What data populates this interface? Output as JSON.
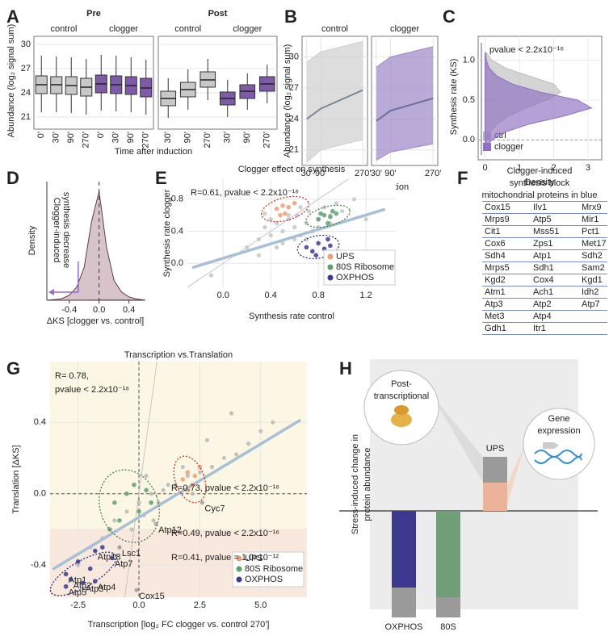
{
  "chart_data": [
    {
      "type": "box",
      "label": "A",
      "ylabel": "Abundance (log₂ signal sum)",
      "xlabel": "Time after induction",
      "ylim": [
        19.5,
        31
      ],
      "yticks": [
        21,
        24,
        27,
        30
      ],
      "grid": true,
      "facets": [
        {
          "title": "Pre",
          "title_color": "#5aa84c",
          "categories": [
            "0'",
            "30'",
            "90'",
            "270'"
          ],
          "series": [
            {
              "name": "control",
              "color": "#c8c8c8",
              "boxes": [
                {
                  "q1": 23.9,
                  "median": 25.0,
                  "q3": 26.1,
                  "low": 21.6,
                  "high": 28.6
                },
                {
                  "q1": 23.9,
                  "median": 25.0,
                  "q3": 26.0,
                  "low": 21.6,
                  "high": 28.5
                },
                {
                  "q1": 23.8,
                  "median": 24.9,
                  "q3": 26.0,
                  "low": 21.5,
                  "high": 28.4
                },
                {
                  "q1": 23.6,
                  "median": 24.7,
                  "q3": 25.8,
                  "low": 21.3,
                  "high": 28.2
                }
              ]
            },
            {
              "name": "clogger",
              "color": "#7d5ba6",
              "boxes": [
                {
                  "q1": 24.0,
                  "median": 25.1,
                  "q3": 26.2,
                  "low": 21.8,
                  "high": 28.7
                },
                {
                  "q1": 23.9,
                  "median": 25.0,
                  "q3": 26.1,
                  "low": 21.7,
                  "high": 28.6
                },
                {
                  "q1": 23.8,
                  "median": 24.9,
                  "q3": 26.0,
                  "low": 21.6,
                  "high": 28.4
                },
                {
                  "q1": 23.5,
                  "median": 24.6,
                  "q3": 25.8,
                  "low": 21.3,
                  "high": 28.1
                }
              ]
            }
          ]
        },
        {
          "title": "Post",
          "title_color": "#c0509a",
          "categories": [
            "30'",
            "90'",
            "270'"
          ],
          "series": [
            {
              "name": "control",
              "color": "#c8c8c8",
              "boxes": [
                {
                  "q1": 22.4,
                  "median": 23.3,
                  "q3": 24.2,
                  "low": 20.9,
                  "high": 25.8
                },
                {
                  "q1": 23.5,
                  "median": 24.4,
                  "q3": 25.3,
                  "low": 21.9,
                  "high": 26.9
                },
                {
                  "q1": 24.7,
                  "median": 25.6,
                  "q3": 26.6,
                  "low": 23.1,
                  "high": 28.2
                }
              ]
            },
            {
              "name": "clogger",
              "color": "#7d5ba6",
              "boxes": [
                {
                  "q1": 22.5,
                  "median": 23.3,
                  "q3": 24.1,
                  "low": 21.0,
                  "high": 25.6
                },
                {
                  "q1": 23.3,
                  "median": 24.2,
                  "q3": 25.0,
                  "low": 21.9,
                  "high": 26.4
                },
                {
                  "q1": 24.2,
                  "median": 25.1,
                  "q3": 26.0,
                  "low": 22.7,
                  "high": 27.5
                }
              ]
            }
          ]
        }
      ]
    },
    {
      "type": "line",
      "label": "B",
      "ylabel": "Abundance (log₂ signal sum)",
      "xlabel": "Time after induction",
      "x": [
        30,
        90,
        270
      ],
      "xlim": [
        10,
        290
      ],
      "xticks": [
        {
          "value": 30,
          "label": "30'"
        },
        {
          "value": 90,
          "label": "90'"
        },
        {
          "value": 270,
          "label": "270'"
        }
      ],
      "ylim": [
        19.5,
        32
      ],
      "yticks": [
        21,
        24,
        27,
        30
      ],
      "grid": true,
      "facets": [
        {
          "title": "control",
          "color": "#7a8699",
          "band_color": "#cfcfcf",
          "median": [
            24.0,
            25.0,
            26.8
          ],
          "low": [
            19.8,
            21.0,
            22.0
          ],
          "high": [
            29.5,
            30.5,
            31.5
          ]
        },
        {
          "title": "clogger",
          "color": "#6a6fa0",
          "band_color": "#9d86c6",
          "median": [
            23.8,
            24.8,
            26.0
          ],
          "low": [
            20.0,
            20.8,
            21.6
          ],
          "high": [
            29.0,
            30.0,
            31.0
          ]
        }
      ]
    },
    {
      "type": "density",
      "orientation": "horizontal",
      "label": "C",
      "ylabel": "Synthesis rate (KS)",
      "xlabel": "Density",
      "annotations": [
        "pvalue  < 2.2x10⁻¹⁶"
      ],
      "ylim": [
        -0.25,
        1.3
      ],
      "yticks": [
        {
          "value": 0,
          "label": "0.0"
        },
        0.5,
        {
          "value": 1,
          "label": "1.0"
        }
      ],
      "xlim": [
        -0.2,
        3.4
      ],
      "xticks": [
        0,
        1,
        2,
        3
      ],
      "y": [
        -0.1,
        0,
        0.1,
        0.2,
        0.3,
        0.4,
        0.5,
        0.6,
        0.7,
        0.8,
        0.9,
        1.0,
        1.1
      ],
      "series": [
        {
          "name": "ctrl",
          "color": "#bdbdbd",
          "values": [
            0,
            0.05,
            0.15,
            0.35,
            0.7,
            1.2,
            1.8,
            2.2,
            2.0,
            1.3,
            0.6,
            0.2,
            0.03
          ]
        },
        {
          "name": "clogger",
          "color": "#8e6fc0",
          "values": [
            0,
            0.2,
            0.6,
            1.3,
            2.3,
            3.1,
            2.7,
            1.6,
            0.8,
            0.35,
            0.12,
            0.04,
            0
          ]
        }
      ],
      "legend": "bottom-left"
    },
    {
      "type": "density",
      "orientation": "vertical",
      "label": "D",
      "ylabel": "Density",
      "xlabel": "ΔKS [clogger vs. control]",
      "annotations": [
        "Clogger-induced",
        "synthesis decrease"
      ],
      "x": [
        -0.7,
        -0.6,
        -0.5,
        -0.4,
        -0.3,
        -0.2,
        -0.1,
        0,
        0.1,
        0.2,
        0.3,
        0.4,
        0.5,
        0.6
      ],
      "values": [
        0,
        0.02,
        0.05,
        0.15,
        0.4,
        1.0,
        2.4,
        3.3,
        1.6,
        0.6,
        0.25,
        0.1,
        0.04,
        0.01
      ],
      "xlim": [
        -0.7,
        0.62
      ],
      "xticks": [
        -0.4,
        {
          "value": 0,
          "label": "0.0"
        },
        0.4
      ],
      "ylim": [
        0,
        3.6
      ],
      "color": "#d9c3ca"
    },
    {
      "type": "scatter",
      "label": "E",
      "title": "Clogger effect on synthesis",
      "annotations": [
        "R=0.61, pvalue < 2.2x10⁻¹⁶"
      ],
      "xlabel": "Synthesis rate control",
      "ylabel": "Synthesis rate clogger",
      "xlim": [
        -0.3,
        1.45
      ],
      "xticks": [
        {
          "value": 0,
          "label": "0.0"
        },
        0.4,
        0.8,
        1.2
      ],
      "ylim": [
        -0.3,
        1.05
      ],
      "yticks": [
        {
          "value": 0,
          "label": "0.0"
        },
        0.4,
        0.8
      ],
      "grid": true,
      "background": {
        "color": "#c4c4c4",
        "x": [
          0.2,
          0.3,
          0.35,
          0.4,
          0.45,
          0.5,
          0.55,
          0.6,
          0.62,
          0.65,
          0.7,
          0.72,
          0.75,
          0.8,
          0.85,
          0.9,
          0.95,
          1.0,
          1.1,
          0.5,
          0.6,
          0.4,
          0.3,
          0.7,
          0.8,
          0.55,
          0.65,
          0.45,
          0.9,
          -0.1,
          1.2,
          0.35
        ],
        "y": [
          0.2,
          0.3,
          0.45,
          0.35,
          0.5,
          0.4,
          0.55,
          0.45,
          0.6,
          0.35,
          0.5,
          0.65,
          0.4,
          0.55,
          0.7,
          0.6,
          0.75,
          0.65,
          0.8,
          0.25,
          0.3,
          0.55,
          0.1,
          0.3,
          0.45,
          0.6,
          0.7,
          0.2,
          0.5,
          -0.15,
          0.55,
          0.62
        ]
      },
      "fit": {
        "color": "#a9bfd6",
        "x": [
          -0.25,
          1.35
        ],
        "y": [
          -0.05,
          0.67
        ]
      },
      "series": [
        {
          "name": "UPS",
          "color": "#e8a07a",
          "x": [
            0.45,
            0.5,
            0.55,
            0.6,
            0.52,
            0.48
          ],
          "y": [
            0.68,
            0.72,
            0.7,
            0.75,
            0.62,
            0.6
          ]
        },
        {
          "name": "80S Ribosome",
          "color": "#5f9e6e",
          "x": [
            0.8,
            0.85,
            0.9,
            0.95,
            0.88,
            0.92,
            0.82
          ],
          "y": [
            0.55,
            0.6,
            0.58,
            0.62,
            0.5,
            0.65,
            0.62
          ]
        },
        {
          "name": "OXPHOS",
          "color": "#3b3a8f",
          "x": [
            0.7,
            0.75,
            0.8,
            0.85,
            0.9,
            0.78,
            0.88
          ],
          "y": [
            0.2,
            0.15,
            0.25,
            0.18,
            0.22,
            0.1,
            0.3
          ]
        }
      ],
      "legend": "bottom-right"
    },
    {
      "type": "scatter",
      "label": "G",
      "title": "Transcription vs.Translation",
      "annotations": [
        "R= 0.78,",
        "pvalue < 2.2x10⁻¹⁶",
        "R=0.73, pvalue < 2.2x10⁻¹⁶",
        "R=0.49, pvalue < 2.2x10⁻¹⁶",
        "R=0.41, pvalue = 1.0x10⁻¹²"
      ],
      "xlabel": "Transcription [log₂ FC clogger vs. control 270']",
      "ylabel": "Translation [ΔKS]",
      "xlim": [
        -3.65,
        6.9
      ],
      "xticks": [
        -2.5,
        {
          "value": 0,
          "label": "0.0"
        },
        2.5,
        {
          "value": 5,
          "label": "5.0"
        }
      ],
      "ylim": [
        -0.58,
        0.74
      ],
      "yticks": [
        -0.4,
        {
          "value": 0,
          "label": "0.0"
        },
        0.4
      ],
      "grid": true,
      "background": {
        "color": "#b8b8b8",
        "x": [
          -1,
          -0.5,
          0,
          0.5,
          1,
          1.5,
          2,
          2.5,
          3,
          3.5,
          4,
          4.5,
          5,
          -1.5,
          -2,
          0.2,
          0.8,
          1.2,
          2.2,
          -0.8,
          0.3,
          1.8,
          2.8,
          3.8,
          -0.3,
          0.6,
          5.5,
          -2.5
        ],
        "y": [
          -0.15,
          -0.1,
          -0.05,
          0,
          0.02,
          0.05,
          0.1,
          0.12,
          0.15,
          0.2,
          0.22,
          0.28,
          0.35,
          -0.25,
          -0.3,
          -0.12,
          -0.05,
          0.05,
          0.0,
          -0.3,
          0.1,
          0.15,
          0.3,
          0.45,
          -0.2,
          -0.15,
          0.4,
          -0.4
        ]
      },
      "labeled": {
        "color": "#a0a0a0",
        "x": [
          2.6,
          0.7,
          -0.8,
          -0.1
        ],
        "y": [
          -0.05,
          -0.17,
          -0.3,
          -0.54
        ],
        "labels": [
          "Cyc7",
          "Atp12",
          "Lsc1",
          "Cox15"
        ]
      },
      "fit": {
        "color": "#a9bfd6",
        "x": [
          -3.5,
          6.6
        ],
        "y": [
          -0.42,
          0.41
        ]
      },
      "series": [
        {
          "name": "UPS",
          "color": "#e8a07a",
          "x": [
            1.8,
            2.0,
            2.2,
            2.5,
            2.3,
            2.0
          ],
          "y": [
            0.08,
            0.12,
            0.05,
            0.15,
            0.1,
            0.02
          ]
        },
        {
          "name": "80S Ribosome",
          "color": "#5f9e6e",
          "x": [
            -1.0,
            -0.5,
            0,
            0.5,
            -0.8,
            -0.2,
            0.3,
            -1.2
          ],
          "y": [
            -0.05,
            0.0,
            -0.1,
            -0.05,
            -0.15,
            0.05,
            0.02,
            -0.2
          ]
        },
        {
          "name": "OXPHOS",
          "color": "#3b3a8f",
          "x": [
            -3.0,
            -2.8,
            -2.3,
            -1.8,
            -3.0,
            -1.8,
            -1.1,
            -2.5,
            -2.0,
            -1.5
          ],
          "y": [
            -0.45,
            -0.48,
            -0.5,
            -0.49,
            -0.52,
            -0.32,
            -0.36,
            -0.38,
            -0.42,
            -0.3
          ],
          "labels": [
            "Atp1",
            "Atp2",
            "Atp3",
            "Atp4",
            "Atp5",
            "Atp18",
            "Atp7",
            null,
            null,
            null
          ]
        }
      ],
      "legend": "bottom-right"
    }
  ],
  "table": {
    "label": "F",
    "title": [
      "Clogger-induced",
      "synthesis block"
    ],
    "subtitle": "mitochondrial proteins in blue",
    "colors": {
      "mito": "#3b5ba5",
      "other": "#666666"
    },
    "rows": [
      [
        "Cox15",
        "Ilv1",
        "Mrx9"
      ],
      [
        "Mrps9",
        "Atp5",
        "Mir1"
      ],
      [
        "Cit1",
        "Mss51",
        "Pct1"
      ],
      [
        "Cox6",
        "Zps1",
        "Met17"
      ],
      [
        "Sdh4",
        "Atp1",
        "Sdh2"
      ],
      [
        "Mrps5",
        "Sdh1",
        "Sam2"
      ],
      [
        "Kgd2",
        "Cox4",
        "Kgd1"
      ],
      [
        "Atm1",
        "Ach1",
        "Idh2"
      ],
      [
        "Atp3",
        "Atp2",
        "Atp7"
      ],
      [
        "Met3",
        "Atp4"
      ],
      [
        "Gdh1",
        "Itr1"
      ]
    ],
    "mito": [
      [
        true,
        true,
        true
      ],
      [
        true,
        true,
        true
      ],
      [
        true,
        true,
        false
      ],
      [
        true,
        false,
        false
      ],
      [
        true,
        true,
        true
      ],
      [
        true,
        true,
        true
      ],
      [
        true,
        true,
        true
      ],
      [
        true,
        true,
        true
      ],
      [
        true,
        true,
        true
      ],
      [
        true,
        true
      ],
      [
        false,
        false
      ]
    ]
  },
  "diagram": {
    "label": "H",
    "ylabel": [
      "Stress-induced change in",
      "protein abundance"
    ],
    "bubble_left": [
      "Post-",
      "transcriptional"
    ],
    "bubble_right": [
      "Gene",
      "expression"
    ],
    "bars": [
      "UPS",
      "OXPHOS",
      "80S"
    ]
  }
}
